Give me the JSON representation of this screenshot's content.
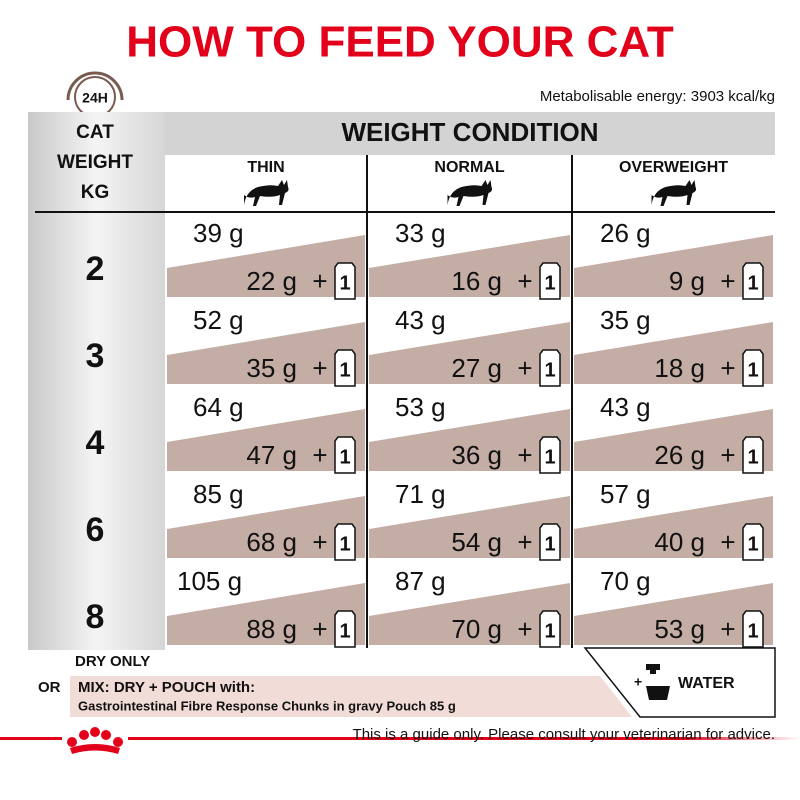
{
  "title": "HOW TO FEED YOUR CAT",
  "badge": "24H",
  "energy": "Metabolisable energy: 3903 kcal/kg",
  "table": {
    "weight_header": [
      "CAT",
      "WEIGHT",
      "KG"
    ],
    "condition_header": "WEIGHT CONDITION",
    "columns": [
      "THIN",
      "NORMAL",
      "OVERWEIGHT"
    ],
    "plus": "+",
    "pouch": "1",
    "rows": [
      {
        "weight": "2",
        "cells": [
          {
            "dry": "39 g",
            "mix": "22 g"
          },
          {
            "dry": "33 g",
            "mix": "16 g"
          },
          {
            "dry": "26 g",
            "mix": "9 g"
          }
        ]
      },
      {
        "weight": "3",
        "cells": [
          {
            "dry": "52 g",
            "mix": "35 g"
          },
          {
            "dry": "43 g",
            "mix": "27 g"
          },
          {
            "dry": "35 g",
            "mix": "18 g"
          }
        ]
      },
      {
        "weight": "4",
        "cells": [
          {
            "dry": "64 g",
            "mix": "47 g"
          },
          {
            "dry": "53 g",
            "mix": "36 g"
          },
          {
            "dry": "43 g",
            "mix": "26 g"
          }
        ]
      },
      {
        "weight": "6",
        "cells": [
          {
            "dry": "85 g",
            "mix": "68 g"
          },
          {
            "dry": "71 g",
            "mix": "54 g"
          },
          {
            "dry": "57 g",
            "mix": "40 g"
          }
        ]
      },
      {
        "weight": "8",
        "cells": [
          {
            "dry": "105 g",
            "mix": "88 g"
          },
          {
            "dry": "87 g",
            "mix": "70 g"
          },
          {
            "dry": "70 g",
            "mix": "53 g"
          }
        ]
      }
    ]
  },
  "footer": {
    "dry_only": "DRY ONLY",
    "or": "OR",
    "mix": "MIX: DRY + POUCH with:",
    "product": "Gastrointestinal Fibre Response Chunks in gravy Pouch 85 g",
    "water_plus": "+",
    "water": "WATER",
    "disclaimer": "This is a guide only. Please consult your veterinarian for advice."
  }
}
